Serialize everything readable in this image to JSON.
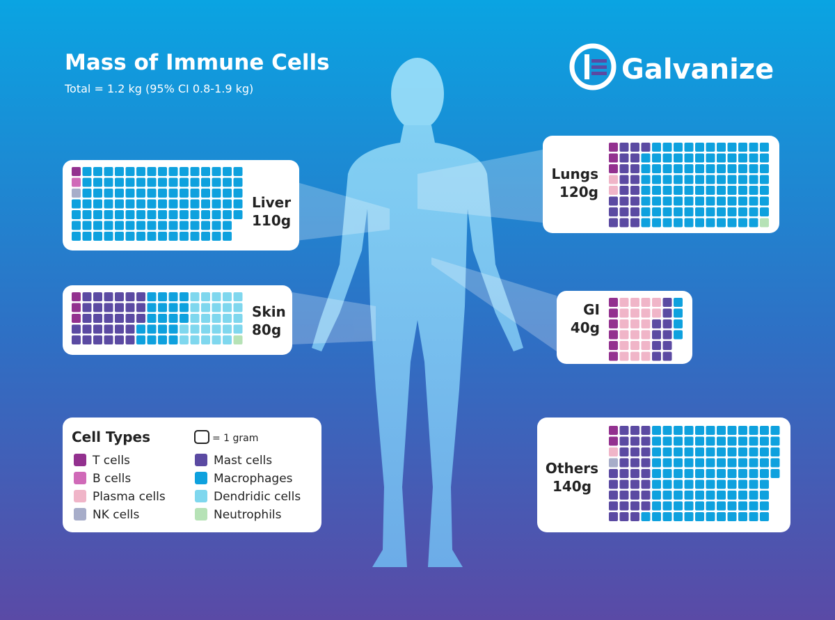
{
  "header": {
    "title": "Mass of Immune Cells",
    "subtitle": "Total = 1.2 kg (95% CI 0.8-1.9 kg)",
    "logo": "Galvanize"
  },
  "legend": {
    "title": "Cell Types",
    "unit": "= 1 gram"
  },
  "cell_types": [
    {
      "name": "T cells",
      "color": "#93318f"
    },
    {
      "name": "B cells",
      "color": "#d06ab8"
    },
    {
      "name": "Plasma cells",
      "color": "#f0b5c8"
    },
    {
      "name": "NK cells",
      "color": "#a7adc9"
    },
    {
      "name": "Mast cells",
      "color": "#5b4aa2"
    },
    {
      "name": "Macrophages",
      "color": "#0ea1de"
    },
    {
      "name": "Dendridic cells",
      "color": "#7fd7ee"
    },
    {
      "name": "Neutrophils",
      "color": "#b6e2b6"
    }
  ],
  "organs": [
    {
      "name": "Liver",
      "mass": "110g",
      "counts": [
        1,
        1,
        0,
        1,
        0,
        107,
        0,
        0
      ]
    },
    {
      "name": "Skin",
      "mass": "80g",
      "counts": [
        3,
        0,
        0,
        0,
        30,
        20,
        26,
        1
      ]
    },
    {
      "name": "Lungs",
      "mass": "120g",
      "counts": [
        3,
        0,
        2,
        0,
        20,
        94,
        0,
        1
      ]
    },
    {
      "name": "GI",
      "mass": "40g",
      "counts": [
        6,
        0,
        20,
        0,
        10,
        4,
        0,
        0
      ]
    },
    {
      "name": "Others",
      "mass": "140g",
      "counts": [
        2,
        0,
        1,
        1,
        31,
        105,
        0,
        0
      ]
    }
  ]
}
